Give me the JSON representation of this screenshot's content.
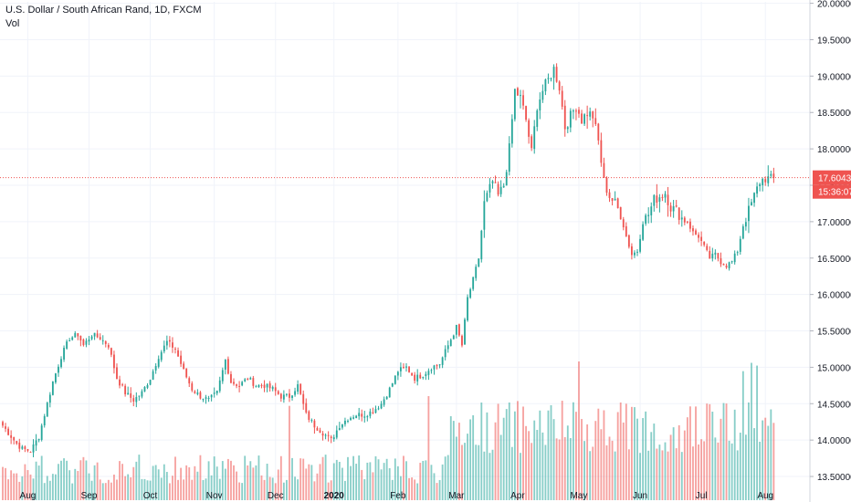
{
  "chart_data": {
    "type": "candlestick",
    "title": "U.S. Dollar / South African Rand, 1D, FXCM",
    "volume_label": "Vol",
    "ylim": [
      13.35,
      20.02
    ],
    "y_ticks": [
      "20.00000",
      "19.50000",
      "19.00000",
      "18.50000",
      "18.00000",
      "17.50000",
      "17.00000",
      "16.50000",
      "16.00000",
      "15.50000",
      "15.00000",
      "14.50000",
      "14.00000",
      "13.50000"
    ],
    "x_tick_labels": [
      {
        "label": "Aug",
        "index": 9
      },
      {
        "label": "Sep",
        "index": 31
      },
      {
        "label": "Oct",
        "index": 53
      },
      {
        "label": "Nov",
        "index": 76
      },
      {
        "label": "Dec",
        "index": 98
      },
      {
        "label": "2020",
        "index": 119
      },
      {
        "label": "Feb",
        "index": 142
      },
      {
        "label": "Mar",
        "index": 163
      },
      {
        "label": "Apr",
        "index": 185
      },
      {
        "label": "May",
        "index": 207
      },
      {
        "label": "Jun",
        "index": 229
      },
      {
        "label": "Jul",
        "index": 251
      },
      {
        "label": "Aug",
        "index": 274
      }
    ],
    "n_days": 290,
    "last_price": "17.60430",
    "countdown": "15:36:07",
    "up_color": "#26a69a",
    "down_color": "#ef5350",
    "anchors": [
      [
        0,
        14.2
      ],
      [
        3,
        14.05
      ],
      [
        5,
        13.95
      ],
      [
        7,
        13.88
      ],
      [
        10,
        13.85
      ],
      [
        13,
        14.05
      ],
      [
        15,
        14.35
      ],
      [
        18,
        14.8
      ],
      [
        21,
        15.15
      ],
      [
        24,
        15.4
      ],
      [
        27,
        15.45
      ],
      [
        29,
        15.3
      ],
      [
        32,
        15.45
      ],
      [
        35,
        15.4
      ],
      [
        38,
        15.3
      ],
      [
        41,
        14.85
      ],
      [
        44,
        14.65
      ],
      [
        47,
        14.55
      ],
      [
        50,
        14.65
      ],
      [
        53,
        14.85
      ],
      [
        56,
        15.15
      ],
      [
        59,
        15.35
      ],
      [
        62,
        15.25
      ],
      [
        65,
        14.95
      ],
      [
        68,
        14.7
      ],
      [
        71,
        14.6
      ],
      [
        74,
        14.55
      ],
      [
        77,
        14.65
      ],
      [
        80,
        15.1
      ],
      [
        82,
        14.8
      ],
      [
        85,
        14.75
      ],
      [
        88,
        14.85
      ],
      [
        91,
        14.75
      ],
      [
        94,
        14.75
      ],
      [
        97,
        14.7
      ],
      [
        100,
        14.6
      ],
      [
        103,
        14.6
      ],
      [
        106,
        14.75
      ],
      [
        109,
        14.35
      ],
      [
        112,
        14.2
      ],
      [
        115,
        14.1
      ],
      [
        118,
        14.0
      ],
      [
        121,
        14.2
      ],
      [
        124,
        14.3
      ],
      [
        127,
        14.35
      ],
      [
        130,
        14.35
      ],
      [
        133,
        14.4
      ],
      [
        136,
        14.5
      ],
      [
        139,
        14.7
      ],
      [
        142,
        14.95
      ],
      [
        145,
        15.0
      ],
      [
        148,
        14.85
      ],
      [
        151,
        14.9
      ],
      [
        154,
        15.0
      ],
      [
        157,
        15.05
      ],
      [
        160,
        15.3
      ],
      [
        163,
        15.55
      ],
      [
        165,
        15.3
      ],
      [
        167,
        15.95
      ],
      [
        169,
        16.2
      ],
      [
        171,
        16.5
      ],
      [
        173,
        17.25
      ],
      [
        176,
        17.55
      ],
      [
        178,
        17.35
      ],
      [
        180,
        17.5
      ],
      [
        182,
        18.0
      ],
      [
        184,
        18.8
      ],
      [
        186,
        18.7
      ],
      [
        188,
        18.4
      ],
      [
        190,
        17.95
      ],
      [
        192,
        18.6
      ],
      [
        194,
        18.8
      ],
      [
        196,
        18.95
      ],
      [
        198,
        19.1
      ],
      [
        200,
        18.85
      ],
      [
        202,
        18.3
      ],
      [
        204,
        18.45
      ],
      [
        206,
        18.6
      ],
      [
        208,
        18.4
      ],
      [
        210,
        18.5
      ],
      [
        212,
        18.45
      ],
      [
        214,
        18.1
      ],
      [
        216,
        17.55
      ],
      [
        218,
        17.35
      ],
      [
        220,
        17.25
      ],
      [
        222,
        17.1
      ],
      [
        224,
        16.8
      ],
      [
        226,
        16.55
      ],
      [
        228,
        16.6
      ],
      [
        230,
        17.0
      ],
      [
        232,
        17.1
      ],
      [
        234,
        17.3
      ],
      [
        236,
        17.35
      ],
      [
        238,
        17.4
      ],
      [
        240,
        17.2
      ],
      [
        242,
        17.15
      ],
      [
        244,
        17.05
      ],
      [
        246,
        17.0
      ],
      [
        248,
        16.85
      ],
      [
        250,
        16.8
      ],
      [
        252,
        16.65
      ],
      [
        254,
        16.5
      ],
      [
        256,
        16.55
      ],
      [
        258,
        16.45
      ],
      [
        260,
        16.4
      ],
      [
        262,
        16.45
      ],
      [
        264,
        16.6
      ],
      [
        266,
        16.95
      ],
      [
        268,
        17.15
      ],
      [
        270,
        17.35
      ],
      [
        272,
        17.55
      ],
      [
        274,
        17.6
      ],
      [
        276,
        17.58
      ],
      [
        277,
        17.6
      ]
    ],
    "volume_spikes": [
      {
        "index": 207,
        "height": 1.0,
        "up": false
      },
      {
        "index": 153,
        "height": 0.75,
        "up": false
      },
      {
        "index": 103,
        "height": 0.68,
        "up": false
      },
      {
        "index": 259,
        "height": 0.7,
        "up": true
      },
      {
        "index": 266,
        "height": 0.93,
        "up": true
      },
      {
        "index": 269,
        "height": 0.99,
        "up": true
      },
      {
        "index": 271,
        "height": 0.97,
        "up": true
      }
    ]
  }
}
